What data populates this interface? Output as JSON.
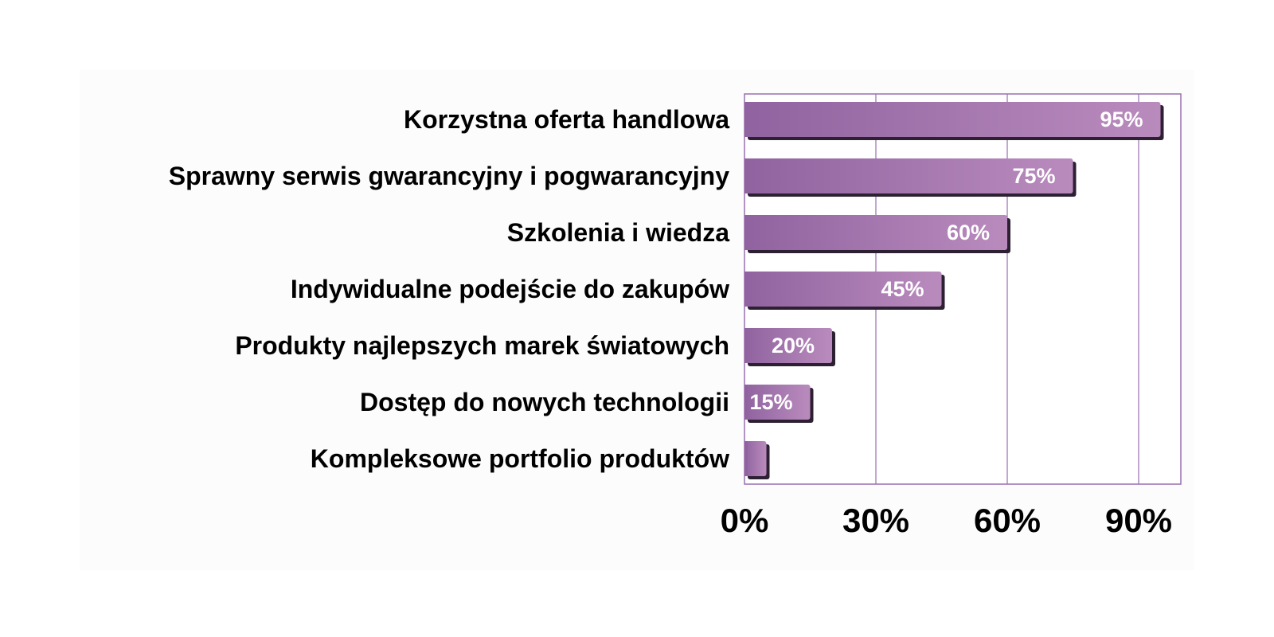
{
  "chart_data": {
    "type": "bar",
    "orientation": "horizontal",
    "categories": [
      "Korzystna oferta handlowa",
      "Sprawny serwis gwarancyjny i pogwarancyjny",
      "Szkolenia i wiedza",
      "Indywidualne podejście do zakupów",
      "Produkty najlepszych marek światowych",
      "Dostęp do nowych technologii",
      "Kompleksowe portfolio produktów"
    ],
    "values": [
      95,
      75,
      60,
      45,
      20,
      15,
      5
    ],
    "data_labels": [
      "95%",
      "75%",
      "60%",
      "45%",
      "20%",
      "15%",
      ""
    ],
    "xticks": [
      "0%",
      "30%",
      "60%",
      "90%"
    ],
    "xtick_values": [
      0,
      30,
      60,
      90
    ],
    "xlim": [
      0,
      100
    ],
    "grid": true,
    "legend": "none",
    "colors": {
      "bar_light": "#b98bbd",
      "bar_dark": "#9063a0",
      "bar_shadow": "#2e2033",
      "grid": "#9a6fb0",
      "frame": "#9a6fb0",
      "plot_background": "#ffffff",
      "outer_background": "#fcfcfc"
    }
  }
}
